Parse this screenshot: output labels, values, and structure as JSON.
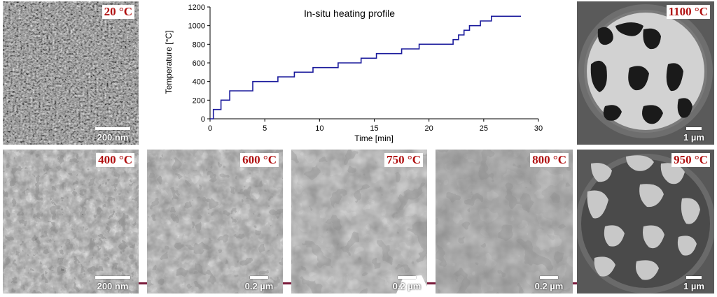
{
  "chart_data": {
    "type": "line",
    "title": "In-situ heating profile",
    "xlabel": "Time [min]",
    "ylabel": "Temperature [°C]",
    "xlim": [
      0,
      30
    ],
    "ylim": [
      0,
      1200
    ],
    "x_ticks": [
      "0",
      "5",
      "10",
      "15",
      "20",
      "25",
      "30"
    ],
    "y_ticks": [
      "0",
      "200",
      "400",
      "600",
      "800",
      "1000",
      "1200"
    ],
    "line_color": "#1a1a9c",
    "grid": false,
    "series": [
      {
        "x": [
          0,
          0.3,
          0.3,
          1.0,
          1.0,
          1.8,
          1.8,
          3.9,
          3.9,
          6.2,
          6.2,
          7.7,
          7.7,
          9.4,
          9.4,
          11.7,
          11.7,
          13.8,
          13.8,
          15.2,
          15.2,
          17.5,
          17.5,
          19.1,
          19.1,
          22.2,
          22.2,
          22.7,
          22.7,
          23.2,
          23.2,
          23.7,
          23.7,
          24.7,
          24.7,
          25.7,
          25.7,
          26.8,
          26.8,
          28.4
        ],
        "y": [
          0,
          0,
          100,
          100,
          200,
          200,
          300,
          300,
          400,
          400,
          450,
          450,
          500,
          500,
          550,
          550,
          600,
          600,
          650,
          650,
          700,
          700,
          750,
          750,
          800,
          800,
          850,
          850,
          900,
          900,
          950,
          950,
          1000,
          1000,
          1050,
          1050,
          1100,
          1100,
          1100,
          1100
        ]
      }
    ]
  },
  "panels": {
    "p20": {
      "temp": "20 °C",
      "scale": "200 nm"
    },
    "p1100": {
      "temp": "1100 °C",
      "scale": "1 µm"
    },
    "p400": {
      "temp": "400 °C",
      "scale": "200 nm"
    },
    "p600": {
      "temp": "600 °C",
      "scale": "0.2 µm"
    },
    "p750": {
      "temp": "750 °C",
      "scale": "0.2 µm"
    },
    "p800": {
      "temp": "800 °C",
      "scale": "0.2 µm"
    },
    "p950": {
      "temp": "950 °C",
      "scale": "1 µm"
    }
  }
}
